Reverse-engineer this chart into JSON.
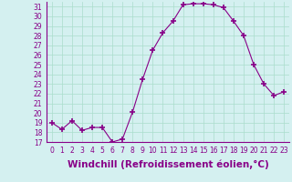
{
  "x": [
    0,
    1,
    2,
    3,
    4,
    5,
    6,
    7,
    8,
    9,
    10,
    11,
    12,
    13,
    14,
    15,
    16,
    17,
    18,
    19,
    20,
    21,
    22,
    23
  ],
  "y": [
    19.0,
    18.3,
    19.2,
    18.2,
    18.5,
    18.5,
    17.0,
    17.3,
    20.1,
    23.5,
    26.5,
    28.3,
    29.5,
    31.2,
    31.3,
    31.3,
    31.2,
    30.9,
    29.5,
    28.0,
    25.0,
    23.0,
    21.8,
    22.2
  ],
  "xlim": [
    -0.5,
    23.5
  ],
  "ylim": [
    17,
    31.5
  ],
  "yticks": [
    17,
    18,
    19,
    20,
    21,
    22,
    23,
    24,
    25,
    26,
    27,
    28,
    29,
    30,
    31
  ],
  "xticks": [
    0,
    1,
    2,
    3,
    4,
    5,
    6,
    7,
    8,
    9,
    10,
    11,
    12,
    13,
    14,
    15,
    16,
    17,
    18,
    19,
    20,
    21,
    22,
    23
  ],
  "xlabel": "Windchill (Refroidissement éolien,°C)",
  "line_color": "#880088",
  "marker": "+",
  "marker_size": 4,
  "bg_color": "#d4f0f0",
  "grid_color": "#aaddcc",
  "tick_color": "#880088",
  "label_color": "#880088",
  "tick_fontsize": 5.5,
  "xlabel_fontsize": 7.5
}
